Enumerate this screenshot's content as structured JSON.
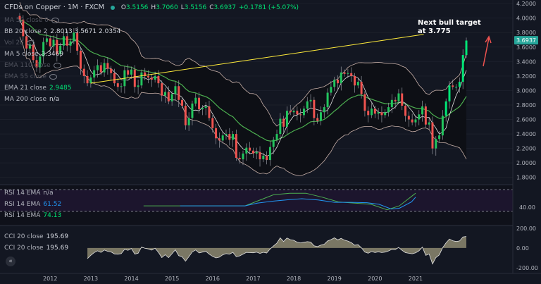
{
  "header": {
    "symbol": "CFDs on Copper · 1M · FXCM",
    "ohlc": [
      {
        "k": "O",
        "v": "3.5156"
      },
      {
        "k": "H",
        "v": "3.7060"
      },
      {
        "k": "L",
        "v": "3.5156"
      },
      {
        "k": "C",
        "v": "3.6937"
      },
      {
        "k": "",
        "v": "+0.1781 (+5.07%)"
      }
    ]
  },
  "indicators": [
    {
      "label": "MA 50 close 0",
      "value": "",
      "dim": true
    },
    {
      "label": "BB 20 close 2",
      "value": "2.8013  3.5671  2.0354",
      "dim": false
    },
    {
      "label": "Vol 20",
      "value": "",
      "dim": true
    },
    {
      "label": "MA 5 close",
      "value": "3.3469",
      "dim": false
    },
    {
      "label": "EMA 110 close",
      "value": "",
      "dim": true
    },
    {
      "label": "EMA 55 close",
      "value": "",
      "dim": true
    },
    {
      "label": "EMA 21 close",
      "value": "2.9485",
      "dim": false
    },
    {
      "label": "MA 200 close",
      "value": "n/a",
      "dim": false
    }
  ],
  "rsi_legend": [
    {
      "label": "RSI 14 EMA",
      "value": "n/a"
    },
    {
      "label": "RSI 14 EMA",
      "value": "61.52"
    },
    {
      "label": "RSI 14 EMA",
      "value": "74.13"
    }
  ],
  "cci_legend": [
    {
      "label": "CCI 20 close",
      "value": "195.69"
    },
    {
      "label": "CCI 20 close",
      "value": "195.69"
    }
  ],
  "annotation": {
    "line1": "Next bull target",
    "line2": "at 3.775"
  },
  "colors": {
    "background": "#131722",
    "up_candle": "#26a69a",
    "up_candle_bright": "#00e676",
    "down_candle": "#ef5350",
    "bollinger": "#c8b0a8",
    "ma5": "#e0e0e0",
    "ema21": "#4caf50",
    "trendline": "#ffeb3b",
    "rsi_green": "#4caf50",
    "rsi_blue": "#2196f3",
    "cci_fill": "#8d8870",
    "price_tag": "#26a69a",
    "target_arrow": "#ef5350"
  },
  "chart_data": {
    "type": "candlestick",
    "title": "CFDs on Copper · 1M · FXCM",
    "x_ticks": [
      "2012",
      "2013",
      "2014",
      "2015",
      "2016",
      "2017",
      "2018",
      "2019",
      "2020",
      "2021"
    ],
    "y_ticks": [
      "4.2000",
      "4.0000",
      "3.8000",
      "3.6000",
      "3.4000",
      "3.2000",
      "3.0000",
      "2.8000",
      "2.6000",
      "2.4000",
      "2.2000",
      "2.0000",
      "1.8000"
    ],
    "ylim": [
      1.7,
      4.25
    ],
    "last_price_label": "3.6937",
    "last_price": 3.6937,
    "trendline": {
      "start": {
        "date": "2013.0",
        "price": 3.1
      },
      "end": {
        "date": "2021.2",
        "price": 3.775
      }
    },
    "closes": [
      3.98,
      3.75,
      3.58,
      3.64,
      3.42,
      3.32,
      3.47,
      3.67,
      3.72,
      3.61,
      3.7,
      3.5,
      3.62,
      3.75,
      3.62,
      3.68,
      3.8,
      3.55,
      3.3,
      3.2,
      3.1,
      3.18,
      3.28,
      3.35,
      3.25,
      3.38,
      3.3,
      3.24,
      3.1,
      3.05,
      3.06,
      3.28,
      3.22,
      3.29,
      3.05,
      3.07,
      3.25,
      3.2,
      3.18,
      3.15,
      3.2,
      3.1,
      2.93,
      2.98,
      2.85,
      2.95,
      3.06,
      2.87,
      2.79,
      2.52,
      2.62,
      2.82,
      2.9,
      2.74,
      2.76,
      2.78,
      2.62,
      2.48,
      2.34,
      2.31,
      2.38,
      2.4,
      2.32,
      2.4,
      2.07,
      2.05,
      2.13,
      2.21,
      2.17,
      2.13,
      2.15,
      2.05,
      2.1,
      2.04,
      2.22,
      2.32,
      2.4,
      2.61,
      2.5,
      2.72,
      2.7,
      2.72,
      2.67,
      2.66,
      2.75,
      2.85,
      2.87,
      2.62,
      2.58,
      2.7,
      2.77,
      2.97,
      3.05,
      3.15,
      3.1,
      3.25,
      3.23,
      3.24,
      3.2,
      3.07,
      3.12,
      2.95,
      2.72,
      2.66,
      2.75,
      2.68,
      2.7,
      2.66,
      2.7,
      2.77,
      2.87,
      2.85,
      2.96,
      2.79,
      2.65,
      2.6,
      2.56,
      2.6,
      2.67,
      2.78,
      2.53,
      2.56,
      2.2,
      2.33,
      2.38,
      2.65,
      2.85,
      3.07,
      3.05,
      3.05,
      3.12,
      3.49,
      3.69
    ],
    "rsi_a": {
      "xlim": [
        2012,
        2021.1
      ],
      "ylim": [
        0,
        100
      ],
      "points": [
        [
          2014.3,
          48
        ],
        [
          2016.2,
          48
        ],
        [
          2016.8,
          48
        ],
        [
          2017.1,
          60
        ],
        [
          2017.5,
          76
        ],
        [
          2017.9,
          80
        ],
        [
          2018.3,
          80
        ],
        [
          2018.7,
          70
        ],
        [
          2019.1,
          58
        ],
        [
          2019.5,
          55
        ],
        [
          2019.9,
          52
        ],
        [
          2020.3,
          38
        ],
        [
          2020.6,
          48
        ],
        [
          2020.9,
          72
        ],
        [
          2021.0,
          80
        ]
      ]
    },
    "rsi_b": {
      "xlim": [
        2012,
        2021.1
      ],
      "ylim": [
        0,
        100
      ],
      "points": [
        [
          2015.2,
          48
        ],
        [
          2016.2,
          48
        ],
        [
          2016.8,
          48
        ],
        [
          2017.1,
          55
        ],
        [
          2017.5,
          60
        ],
        [
          2017.9,
          64
        ],
        [
          2018.2,
          66
        ],
        [
          2018.6,
          63
        ],
        [
          2019.0,
          57
        ],
        [
          2019.4,
          57
        ],
        [
          2019.8,
          56
        ],
        [
          2020.1,
          52
        ],
        [
          2020.4,
          40
        ],
        [
          2020.6,
          42
        ],
        [
          2020.9,
          58
        ],
        [
          2021.0,
          70
        ]
      ]
    },
    "cci": {
      "ylim": [
        -250,
        220
      ],
      "ticks": [
        "200.00",
        "0.00",
        "-200.00"
      ],
      "label_value": "195.69"
    }
  }
}
